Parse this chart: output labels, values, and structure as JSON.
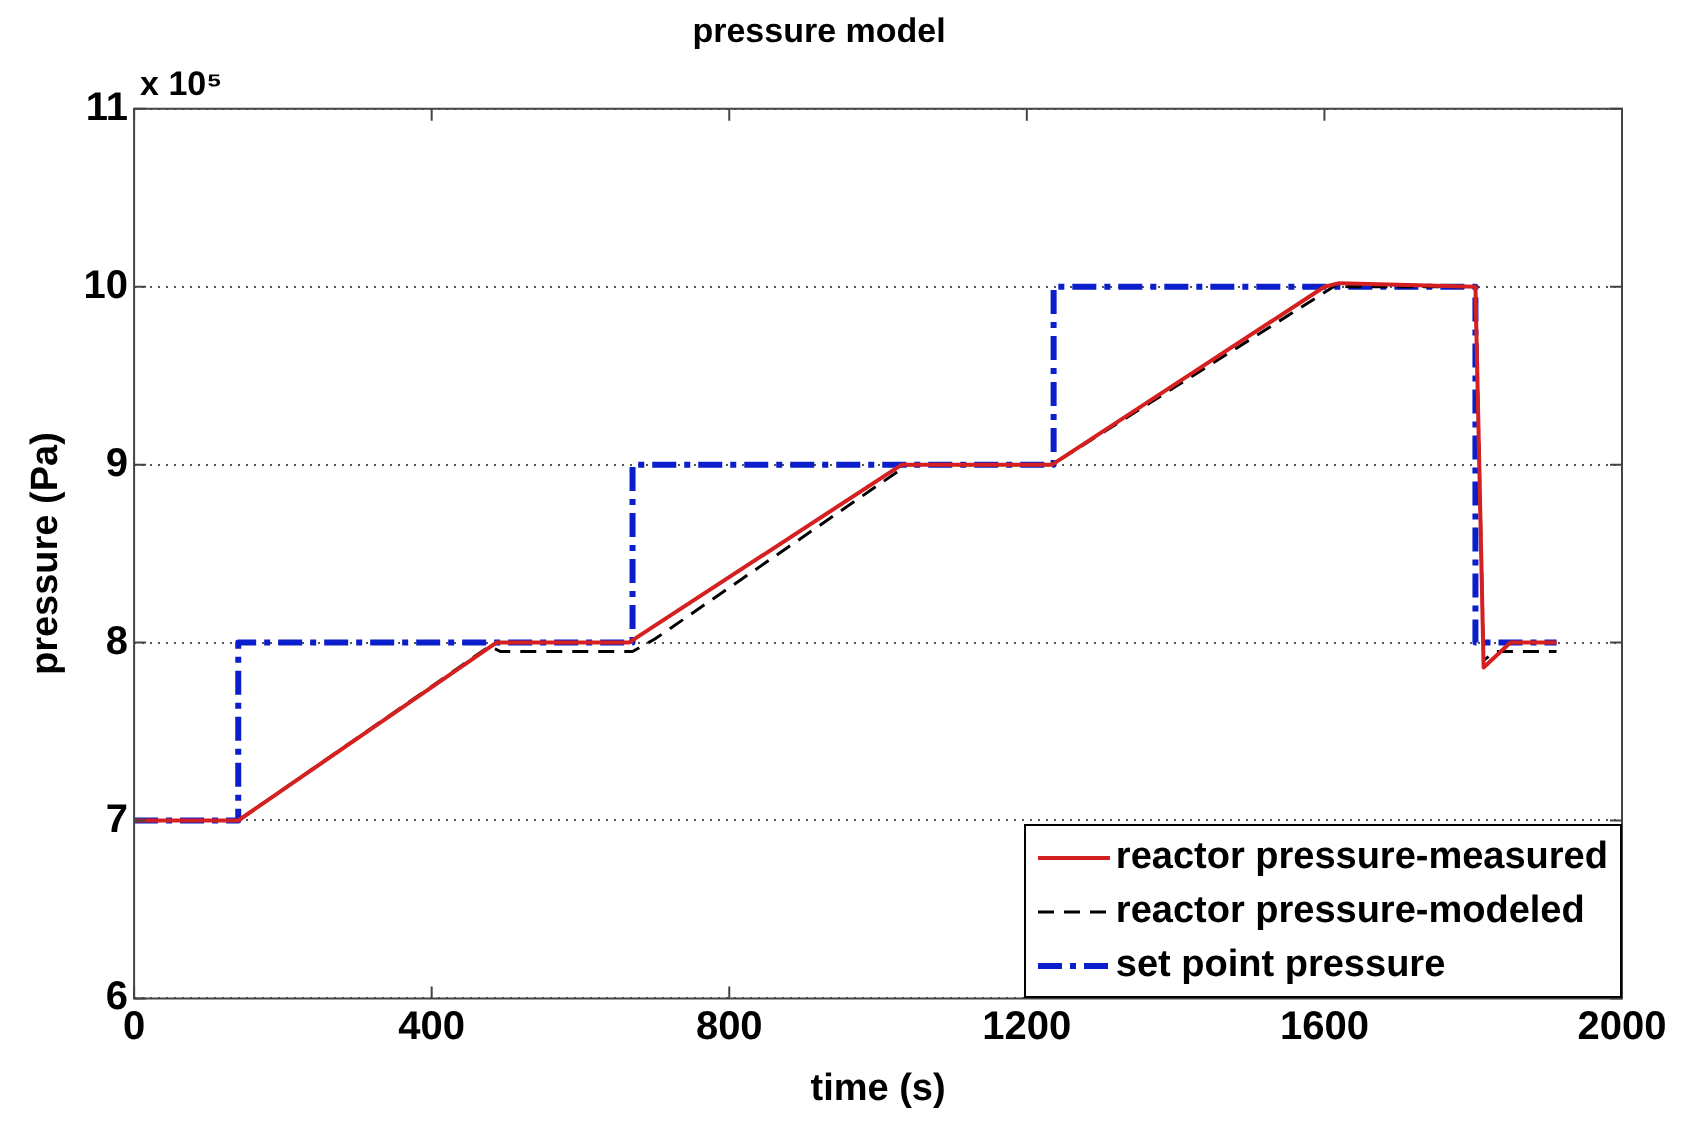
{
  "chart_data": {
    "type": "line",
    "title": "pressure model",
    "xlabel": "time (s)",
    "ylabel": "pressure (Pa)",
    "annotations": [
      "x 10⁵"
    ],
    "xlim": [
      0,
      2000
    ],
    "xticks": [
      0,
      400,
      800,
      1200,
      1600,
      2000
    ],
    "ylim": [
      6,
      11
    ],
    "yticks": [
      6,
      7,
      8,
      9,
      10,
      11
    ],
    "grid": "y",
    "legend": "bottom right",
    "marker": "none",
    "series": [
      {
        "name": "reactor pressure-measured",
        "color": "#d42020",
        "line_style": "solid",
        "x": [
          0,
          140,
          487,
          665,
          1032,
          1234,
          1600,
          1620,
          1803,
          1814,
          1850,
          1912
        ],
        "values": [
          7,
          7,
          8,
          8,
          9,
          9,
          10,
          10.02,
          10,
          7.86,
          8,
          8
        ]
      },
      {
        "name": "reactor pressure-modeled",
        "color": "#000000",
        "line_style": "dashed",
        "x": [
          0,
          140,
          478,
          492,
          670,
          700,
          1040,
          1234,
          1620,
          1630,
          1803,
          1814,
          1830,
          1912
        ],
        "values": [
          7,
          7,
          7.98,
          7.95,
          7.95,
          8.02,
          9,
          9,
          10.02,
          10,
          10,
          7.9,
          7.95,
          7.95
        ]
      },
      {
        "name": "set point pressure",
        "color": "#0a1ecc",
        "line_style": "dashdot",
        "x": [
          0,
          140,
          140,
          670,
          670,
          1236,
          1236,
          1803,
          1803,
          1912
        ],
        "values": [
          7,
          7,
          8,
          8,
          9,
          9,
          10,
          10,
          8,
          8
        ]
      }
    ]
  }
}
